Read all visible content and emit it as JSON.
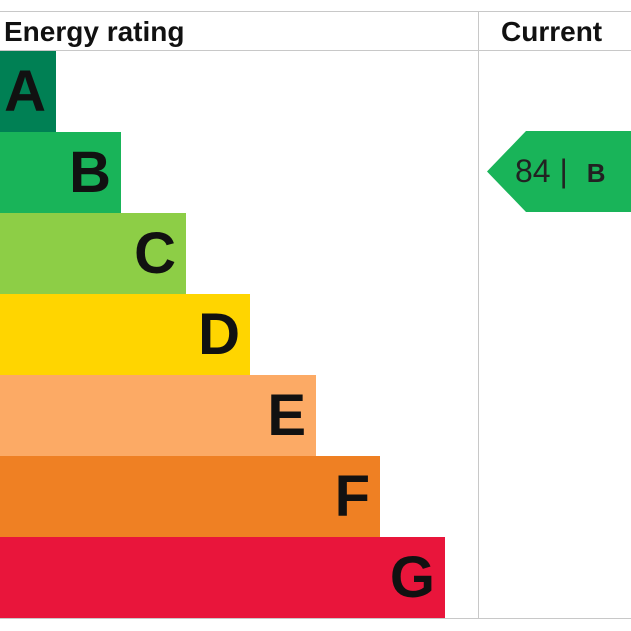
{
  "chart_data": {
    "type": "bar",
    "title": "Energy rating",
    "categories": [
      "A",
      "B",
      "C",
      "D",
      "E",
      "F",
      "G"
    ],
    "colors": [
      "#008054",
      "#19b459",
      "#8dce46",
      "#ffd500",
      "#fcaa65",
      "#ef8023",
      "#e9153b"
    ],
    "column_header": "Current",
    "current": {
      "score": "84",
      "separator": "|",
      "band": "B",
      "color": "#19b459"
    }
  }
}
